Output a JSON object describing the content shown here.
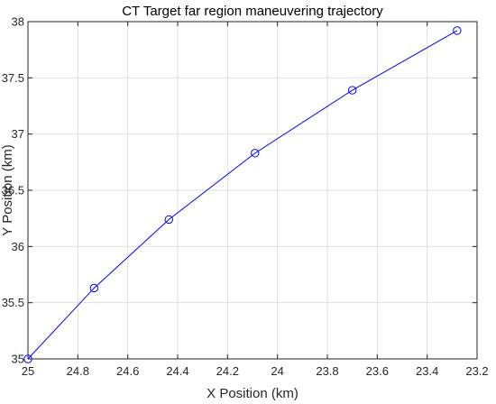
{
  "chart_data": {
    "type": "line",
    "title": "CT Target far region maneuvering trajectory",
    "xlabel": "X Position (km)",
    "ylabel": "Y Position (km)",
    "xlim": [
      25,
      23.2
    ],
    "ylim": [
      35,
      38
    ],
    "x_reversed": true,
    "grid": true,
    "x_ticks": [
      "25",
      "24.8",
      "24.6",
      "24.4",
      "24.2",
      "24",
      "23.8",
      "23.6",
      "23.4",
      "23.2"
    ],
    "y_ticks": [
      "35",
      "35.5",
      "36",
      "36.5",
      "37",
      "37.5",
      "38"
    ],
    "series": [
      {
        "color": "#0000ff",
        "marker": "circle",
        "x": [
          25.0,
          24.735,
          24.435,
          24.09,
          23.7,
          23.28
        ],
        "y": [
          35.0,
          35.63,
          36.24,
          36.83,
          37.39,
          37.92
        ]
      }
    ]
  }
}
